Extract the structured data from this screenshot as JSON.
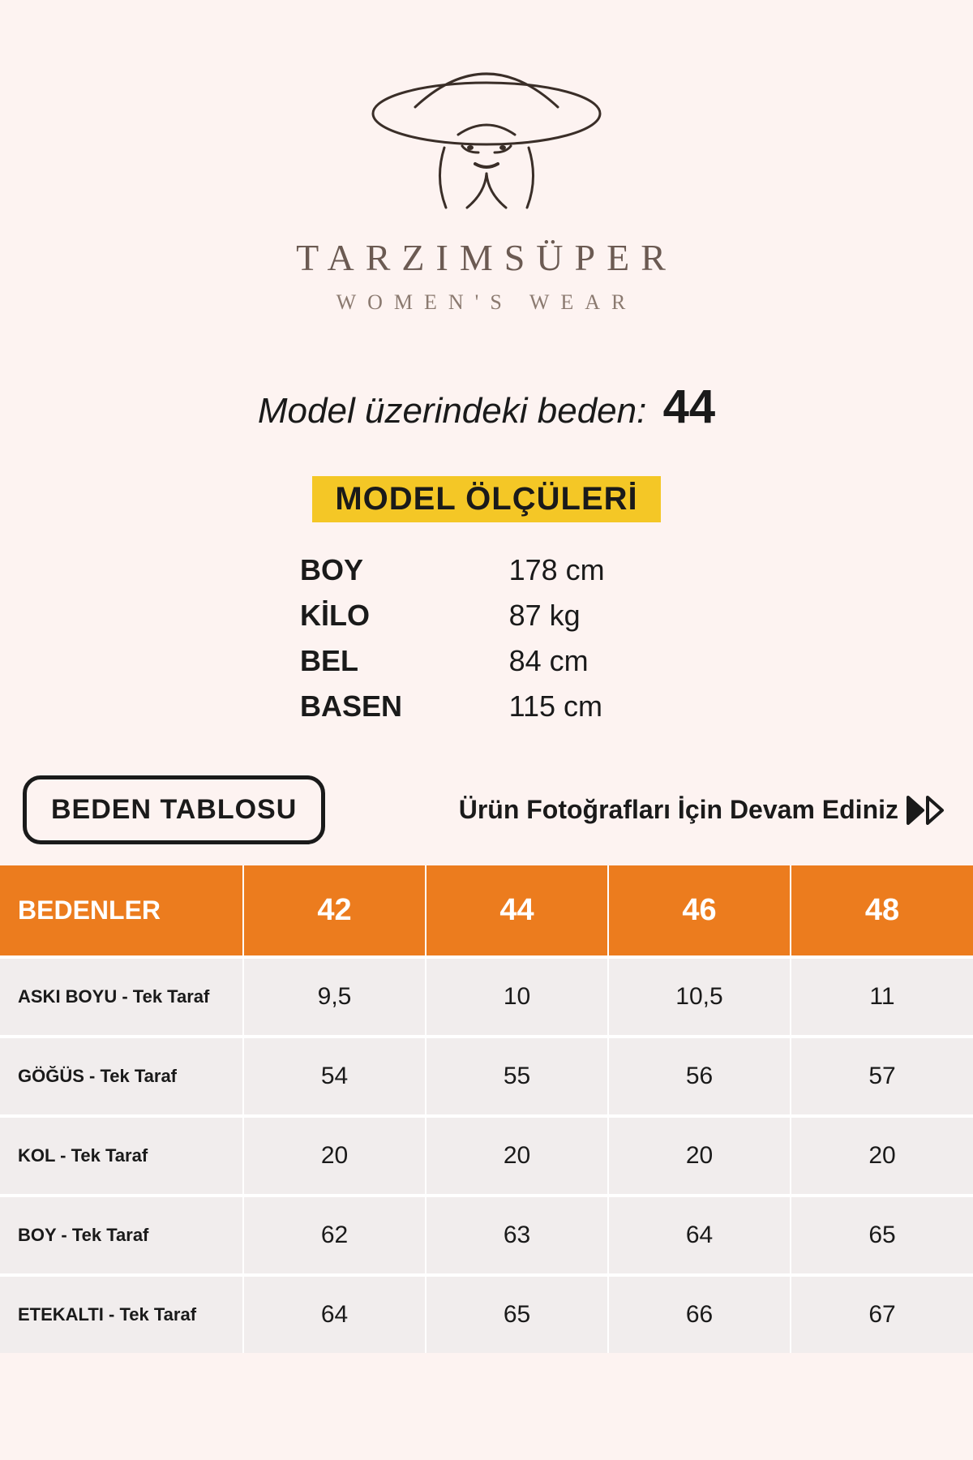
{
  "brand": {
    "name": "TARZIMSÜPER",
    "subtitle": "WOMEN'S WEAR",
    "name_color": "#6b5a52",
    "subtitle_color": "#8b7a70",
    "logo_color": "#3a2e28"
  },
  "model_size": {
    "label": "Model üzerindeki beden:",
    "value": "44"
  },
  "model_measures": {
    "title": "MODEL ÖLÇÜLERİ",
    "title_bg": "#f4c726",
    "rows": [
      {
        "k": "BOY",
        "v": "178 cm"
      },
      {
        "k": "KİLO",
        "v": "87 kg"
      },
      {
        "k": "BEL",
        "v": "84 cm"
      },
      {
        "k": "BASEN",
        "v": "115 cm"
      }
    ]
  },
  "size_table_button": "BEDEN TABLOSU",
  "continue_text": "Ürün Fotoğrafları İçin Devam Ediniz",
  "size_table": {
    "type": "table",
    "header_bg": "#ec7c1e",
    "header_color": "#ffffff",
    "cell_bg": "#f1eded",
    "border_color": "#ffffff",
    "first_header": "BEDENLER",
    "sizes": [
      "42",
      "44",
      "46",
      "48"
    ],
    "rows": [
      {
        "label": "ASKI BOYU - Tek Taraf",
        "values": [
          "9,5",
          "10",
          "10,5",
          "11"
        ]
      },
      {
        "label": "GÖĞÜS - Tek Taraf",
        "values": [
          "54",
          "55",
          "56",
          "57"
        ]
      },
      {
        "label": "KOL - Tek Taraf",
        "values": [
          "20",
          "20",
          "20",
          "20"
        ]
      },
      {
        "label": "BOY - Tek Taraf",
        "values": [
          "62",
          "63",
          "64",
          "65"
        ]
      },
      {
        "label": "ETEKALTI - Tek Taraf",
        "values": [
          "64",
          "65",
          "66",
          "67"
        ]
      }
    ]
  },
  "background_color": "#fdf3f1"
}
